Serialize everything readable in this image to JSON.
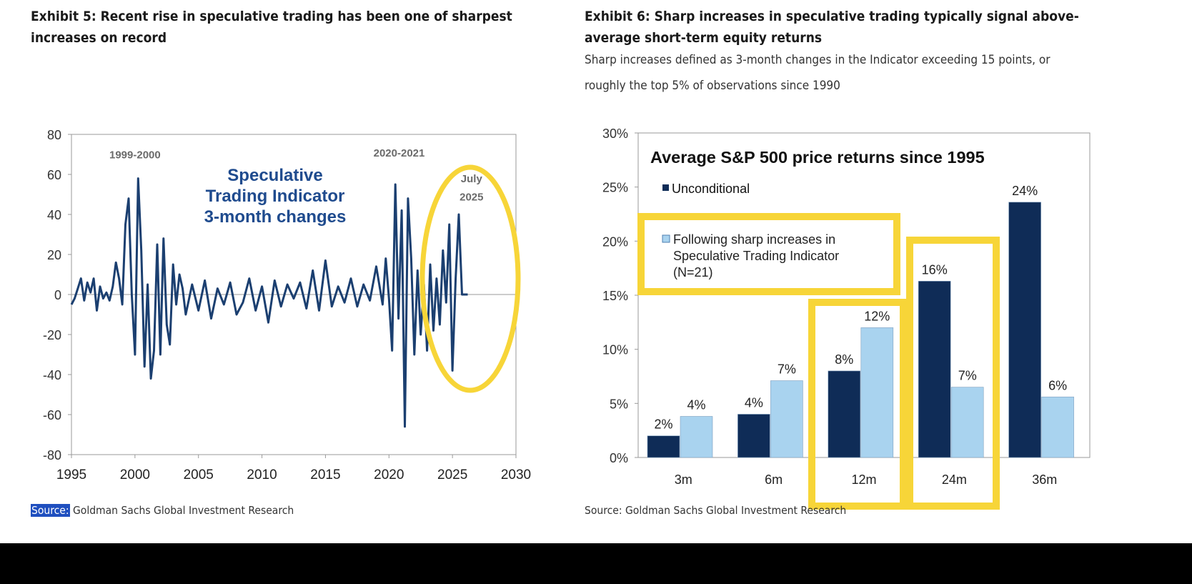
{
  "left_exhibit": {
    "title": "Exhibit 5: Recent rise in speculative trading has been one of sharpest\nincreases on record",
    "source_label": "Source:",
    "source_text": " Goldman Sachs Global Investment Research"
  },
  "right_exhibit": {
    "title": "Exhibit 6: Sharp increases in speculative trading typically signal above-\naverage short-term equity returns",
    "subtitle": "Sharp increases defined as 3-month changes in the Indicator exceeding 15 points, or\nroughly the top 5% of observations since 1990",
    "source_text": "Source: Goldman Sachs Global Investment Research"
  },
  "highlight_color": "#f7d538",
  "chart_data": [
    {
      "type": "line",
      "title": "Speculative Trading Indicator 3-month changes",
      "title_lines": [
        "Speculative",
        "Trading Indicator",
        "3-month changes"
      ],
      "xlabel": "",
      "ylabel": "",
      "xlim": [
        1995,
        2030
      ],
      "ylim": [
        -80,
        80
      ],
      "x_ticks": [
        1995,
        2000,
        2005,
        2010,
        2015,
        2020,
        2025,
        2030
      ],
      "y_ticks": [
        -80,
        -60,
        -40,
        -20,
        0,
        20,
        40,
        60,
        80
      ],
      "grid": false,
      "annotations": [
        {
          "text": "1999-2000",
          "x": 2000,
          "y": 68
        },
        {
          "text": "2020-2021",
          "x": 2020.8,
          "y": 69
        },
        {
          "text": "July",
          "x": 2026.5,
          "y": 56
        },
        {
          "text": "2025",
          "x": 2026.5,
          "y": 47
        }
      ],
      "line_color": "#1b3f70",
      "series": [
        {
          "x": [
            1995.0,
            1995.25,
            1995.5,
            1995.75,
            1996.0,
            1996.25,
            1996.5,
            1996.75,
            1997.0,
            1997.25,
            1997.5,
            1997.75,
            1998.0,
            1998.25,
            1998.5,
            1998.75,
            1999.0,
            1999.25,
            1999.5,
            1999.75,
            2000.0,
            2000.25,
            2000.5,
            2000.75,
            2001.0,
            2001.25,
            2001.5,
            2001.75,
            2002.0,
            2002.25,
            2002.5,
            2002.75,
            2003.0,
            2003.25,
            2003.5,
            2003.75,
            2004.0,
            2004.5,
            2005.0,
            2005.5,
            2006.0,
            2006.5,
            2007.0,
            2007.5,
            2008.0,
            2008.5,
            2009.0,
            2009.5,
            2010.0,
            2010.5,
            2011.0,
            2011.5,
            2012.0,
            2012.5,
            2013.0,
            2013.5,
            2014.0,
            2014.5,
            2015.0,
            2015.5,
            2016.0,
            2016.5,
            2017.0,
            2017.5,
            2018.0,
            2018.5,
            2019.0,
            2019.5,
            2019.75,
            2020.0,
            2020.25,
            2020.5,
            2020.75,
            2021.0,
            2021.25,
            2021.5,
            2021.75,
            2022.0,
            2022.25,
            2022.5,
            2022.75,
            2023.0,
            2023.25,
            2023.5,
            2023.75,
            2024.0,
            2024.25,
            2024.5,
            2024.75,
            2025.0,
            2025.25,
            2025.5,
            2025.75,
            2026.0,
            2026.2
          ],
          "y": [
            -5,
            -2,
            3,
            8,
            -3,
            6,
            1,
            8,
            -8,
            4,
            -2,
            1,
            -3,
            4,
            16,
            8,
            -5,
            35,
            48,
            0,
            -30,
            58,
            22,
            -36,
            5,
            -42,
            -28,
            25,
            -30,
            28,
            -15,
            -25,
            15,
            -5,
            10,
            3,
            -10,
            5,
            -8,
            7,
            -12,
            3,
            -5,
            6,
            -10,
            -4,
            8,
            -8,
            4,
            -14,
            7,
            -6,
            5,
            -2,
            6,
            -7,
            12,
            -8,
            17,
            -6,
            4,
            -4,
            8,
            -6,
            5,
            -3,
            14,
            -5,
            18,
            -2,
            -28,
            55,
            -12,
            42,
            -66,
            48,
            18,
            -30,
            12,
            -20,
            5,
            -28,
            15,
            -18,
            8,
            -15,
            22,
            -4,
            35,
            -38,
            8,
            40,
            0,
            0,
            0
          ]
        }
      ]
    },
    {
      "type": "bar",
      "title": "Average S&P 500 price returns since 1995",
      "categories": [
        "3m",
        "6m",
        "12m",
        "24m",
        "36m"
      ],
      "xlabel": "",
      "ylabel": "",
      "ylim": [
        0,
        30
      ],
      "y_ticks": [
        "0%",
        "5%",
        "10%",
        "15%",
        "20%",
        "25%",
        "30%"
      ],
      "grid": false,
      "legend_placement": "top-left",
      "series": [
        {
          "name": "Unconditional",
          "values": [
            2,
            4,
            8,
            16.3,
            23.6
          ],
          "labels": [
            "2%",
            "4%",
            "8%",
            "16%",
            "24%"
          ],
          "color": "#0f2c57"
        },
        {
          "name": "Following sharp increases in\nSpeculative Trading Indicator\n(N=21)",
          "values": [
            3.8,
            7.1,
            12,
            6.5,
            5.6
          ],
          "labels": [
            "4%",
            "7%",
            "12%",
            "7%",
            "6%"
          ],
          "color": "#a9d3ef"
        }
      ]
    }
  ]
}
